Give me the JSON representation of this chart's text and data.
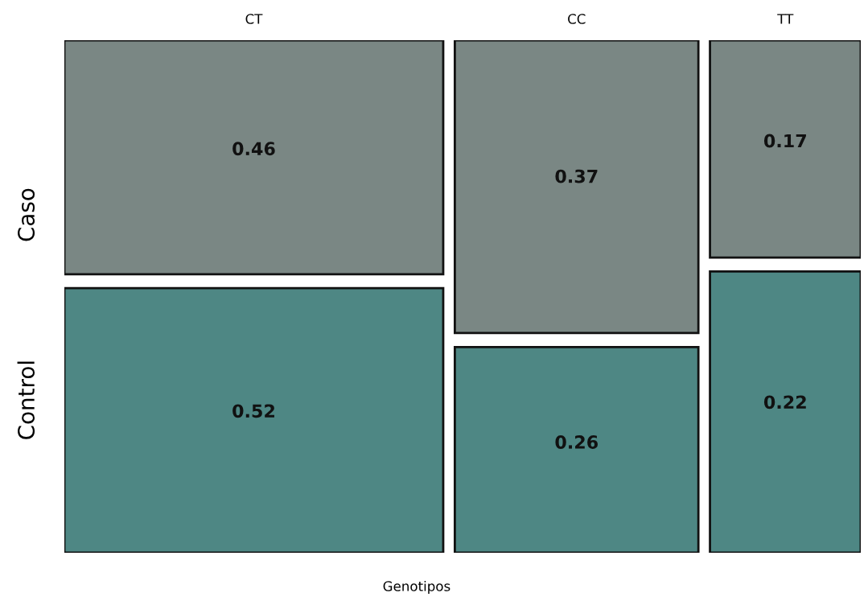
{
  "chart_data": {
    "type": "other",
    "xlabel": "Genotipos",
    "categories": [
      "CT",
      "CC",
      "TT"
    ],
    "series": [
      {
        "name": "Caso",
        "color": "#7a8784",
        "values": [
          0.46,
          0.37,
          0.17
        ]
      },
      {
        "name": "Control",
        "color": "#4e8784",
        "values": [
          0.52,
          0.26,
          0.22
        ]
      }
    ],
    "data_labels": true
  }
}
